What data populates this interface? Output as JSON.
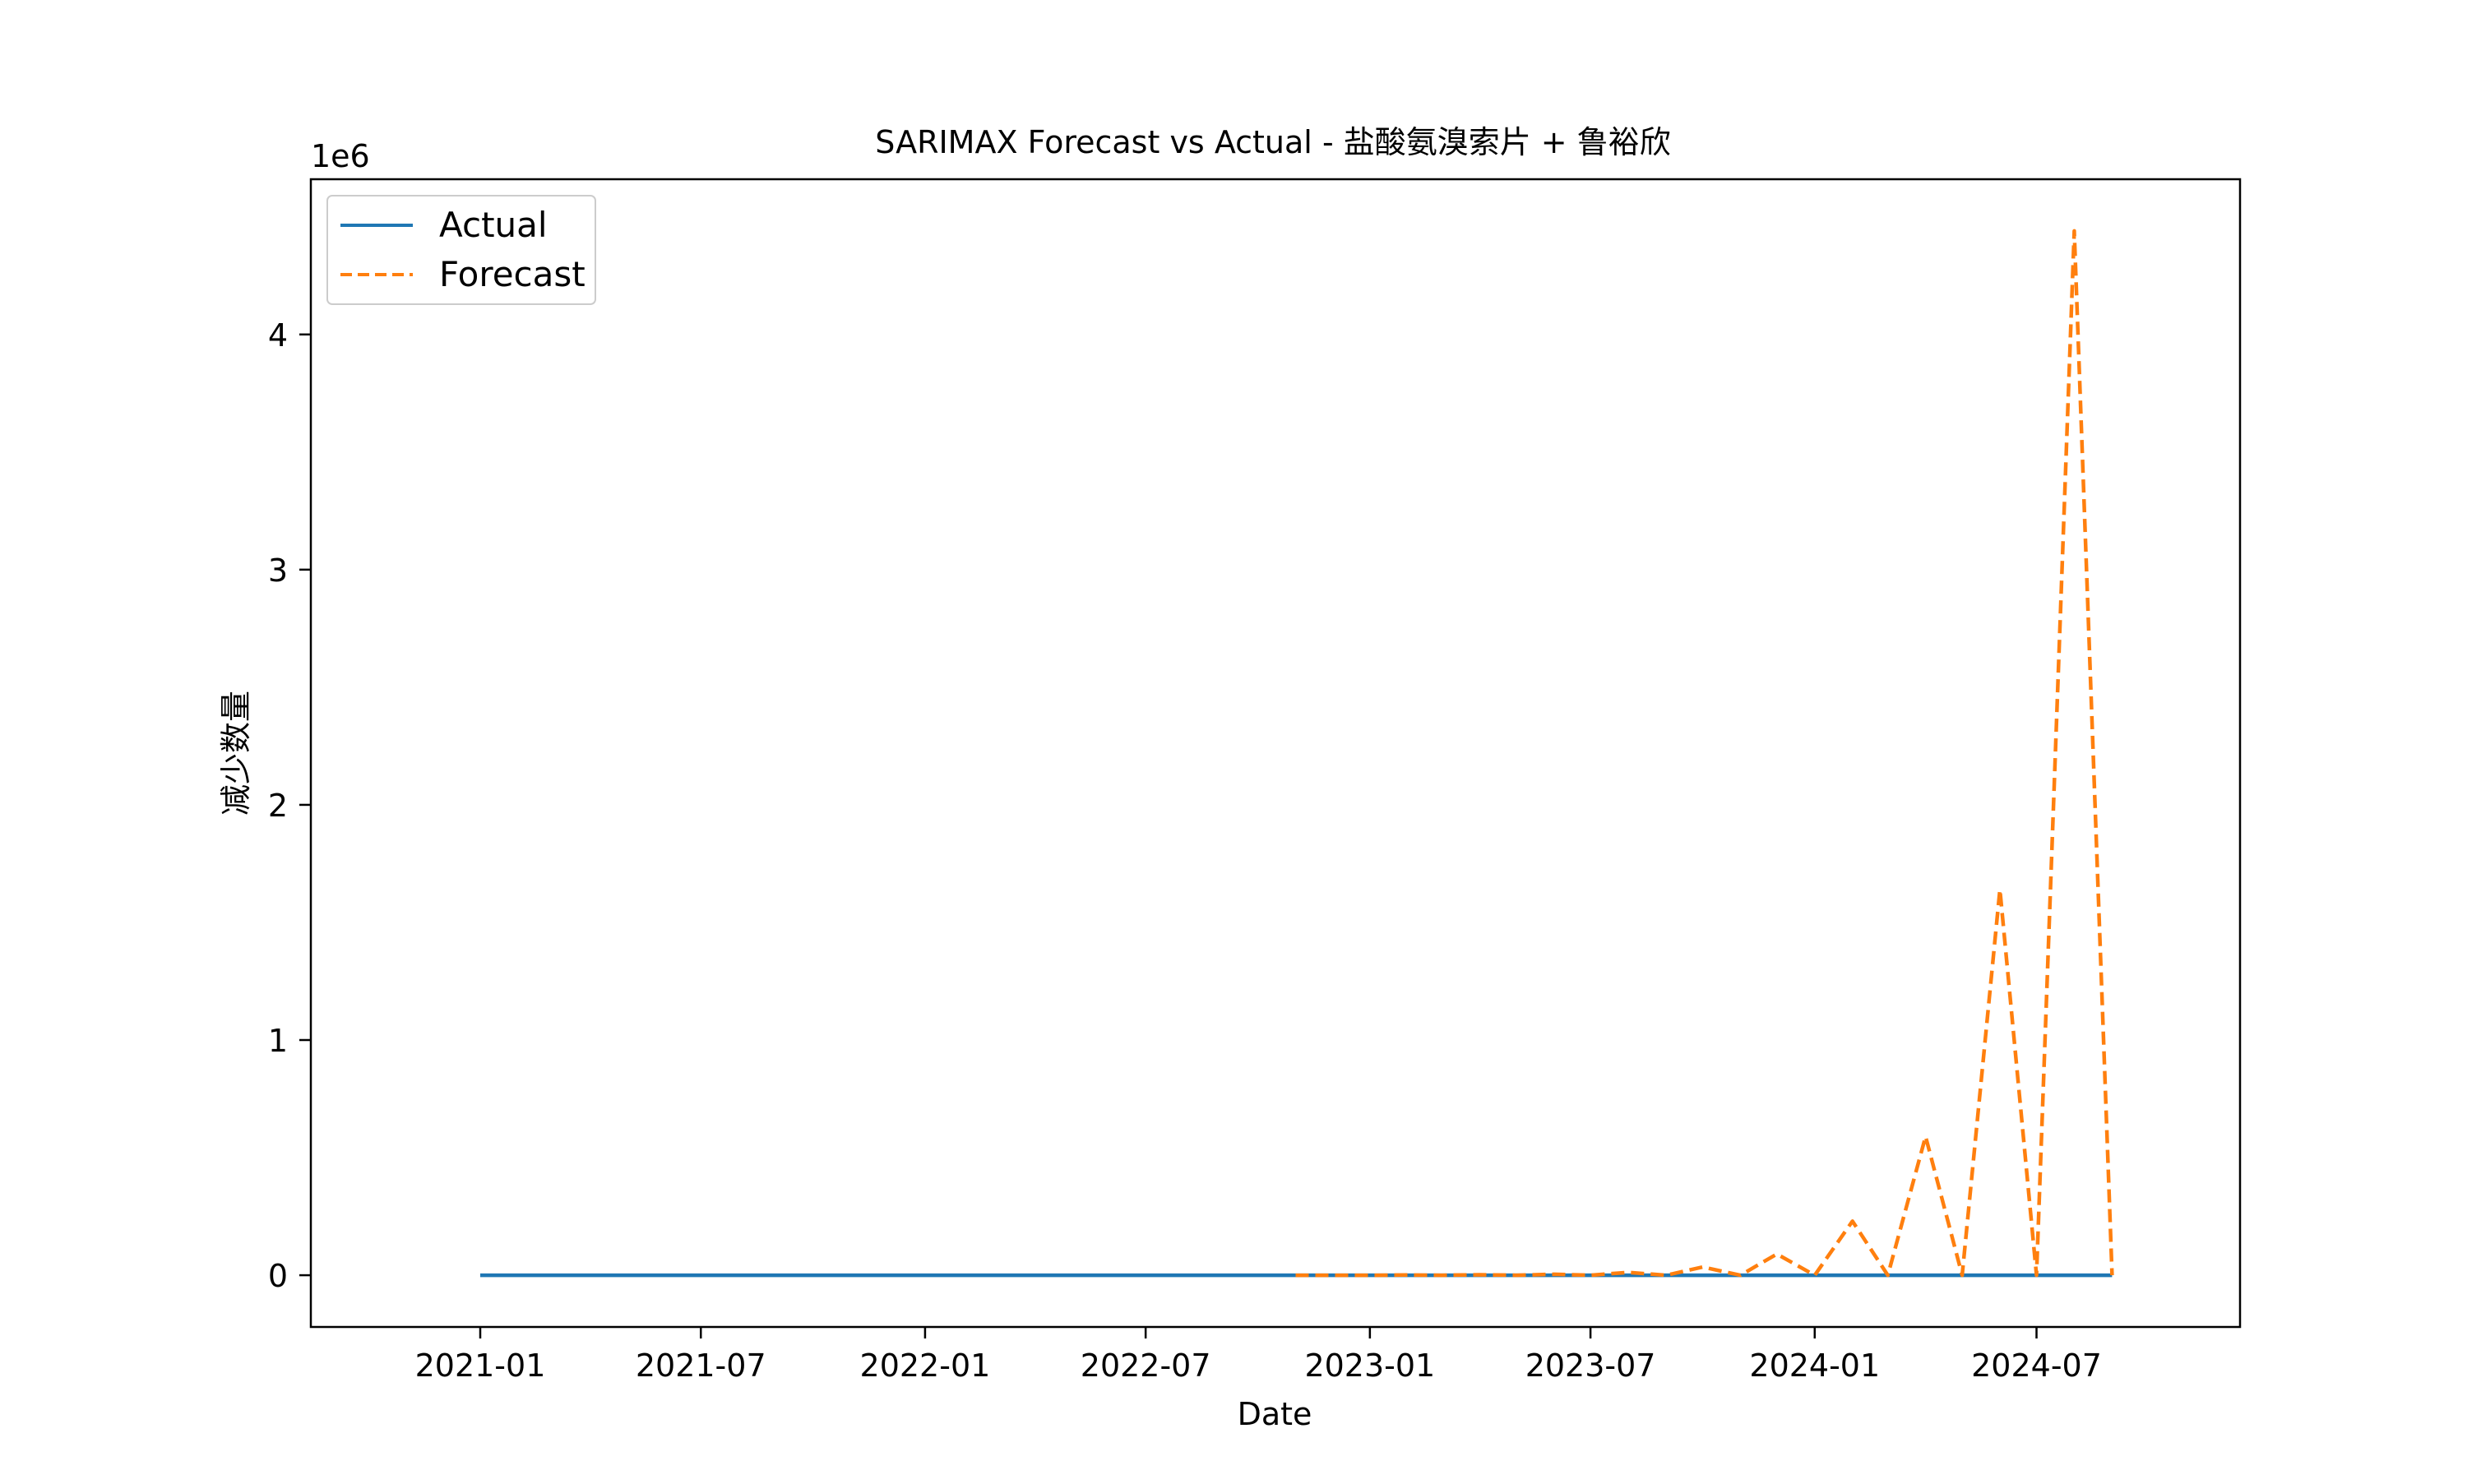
{
  "chart_data": {
    "type": "line",
    "title": "SARIMAX Forecast vs Actual - 盐酸氨溴索片 + 鲁裕欣",
    "xlabel": "Date",
    "ylabel": "减少数量",
    "y_scale_label": "1e6",
    "x_ticks": [
      "2021-01",
      "2021-07",
      "2022-01",
      "2022-07",
      "2023-01",
      "2023-07",
      "2024-01",
      "2024-07"
    ],
    "y_ticks": [
      0,
      1,
      2,
      3,
      4
    ],
    "x_range": [
      "2020-08-15",
      "2024-12-15"
    ],
    "ylim": [
      -0.22,
      4.66
    ],
    "legend_position": "upper-left",
    "grid": false,
    "series": [
      {
        "name": "Actual",
        "color": "#1f77b4",
        "style": "solid",
        "x": [
          "2021-01",
          "2021-02",
          "2021-03",
          "2021-04",
          "2021-05",
          "2021-06",
          "2021-07",
          "2021-08",
          "2021-09",
          "2021-10",
          "2021-11",
          "2021-12",
          "2022-01",
          "2022-02",
          "2022-03",
          "2022-04",
          "2022-05",
          "2022-06",
          "2022-07",
          "2022-08",
          "2022-09",
          "2022-10",
          "2022-11",
          "2022-12",
          "2023-01",
          "2023-02",
          "2023-03",
          "2023-04",
          "2023-05",
          "2023-06",
          "2023-07",
          "2023-08",
          "2023-09",
          "2023-10",
          "2023-11",
          "2023-12",
          "2024-01",
          "2024-02",
          "2024-03",
          "2024-04",
          "2024-05",
          "2024-06",
          "2024-07",
          "2024-08",
          "2024-09"
        ],
        "values": [
          0,
          0,
          0,
          0,
          0,
          0,
          0,
          0,
          0,
          0,
          0,
          0,
          0,
          0,
          0,
          0,
          0,
          0,
          0,
          0,
          0,
          0,
          0,
          0,
          0,
          0,
          0,
          0,
          0,
          0,
          0,
          0,
          0,
          0,
          0,
          0,
          0,
          0,
          0,
          0,
          0,
          0,
          0,
          0,
          0
        ]
      },
      {
        "name": "Forecast",
        "color": "#ff7f0e",
        "style": "dashed",
        "x": [
          "2022-11",
          "2022-12",
          "2023-01",
          "2023-02",
          "2023-03",
          "2023-04",
          "2023-05",
          "2023-06",
          "2023-07",
          "2023-08",
          "2023-09",
          "2023-10",
          "2023-11",
          "2023-12",
          "2024-01",
          "2024-02",
          "2024-03",
          "2024-04",
          "2024-05",
          "2024-06",
          "2024-07",
          "2024-08",
          "2024-09"
        ],
        "values": [
          0.0,
          0.0,
          0.0,
          0.001,
          0.0,
          0.002,
          0.0,
          0.004,
          0.0,
          0.012,
          0.0,
          0.035,
          0.0,
          0.09,
          0.0,
          0.23,
          0.0,
          0.59,
          0.0,
          1.64,
          0.0,
          4.44,
          0.0
        ]
      }
    ]
  }
}
